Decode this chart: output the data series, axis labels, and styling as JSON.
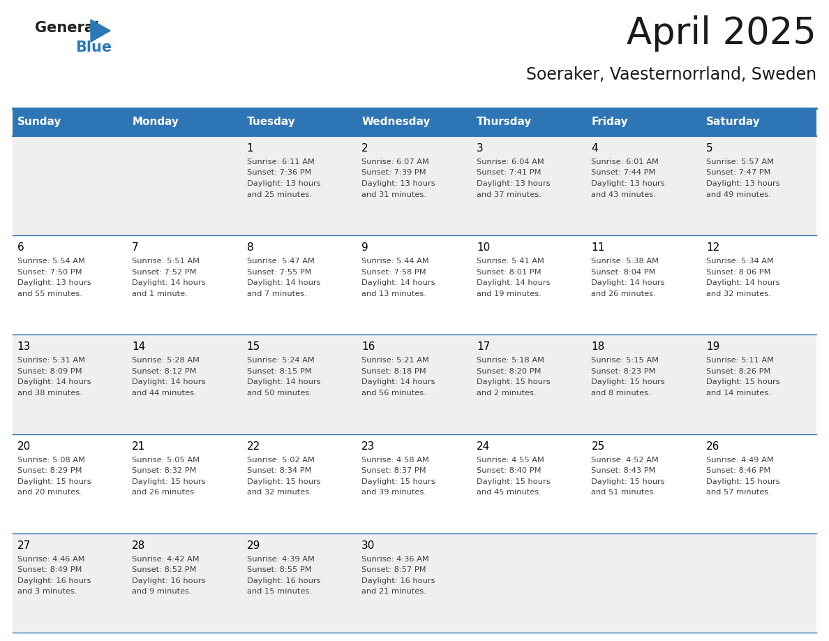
{
  "title": "April 2025",
  "subtitle": "Soeraker, Vaesternorrland, Sweden",
  "days_of_week": [
    "Sunday",
    "Monday",
    "Tuesday",
    "Wednesday",
    "Thursday",
    "Friday",
    "Saturday"
  ],
  "header_bg": "#2E75B6",
  "header_text_color": "#FFFFFF",
  "row_bg_even": "#EFEFEF",
  "row_bg_odd": "#FFFFFF",
  "cell_border_color": "#2E75B6",
  "day_number_color": "#000000",
  "content_text_color": "#404040",
  "title_color": "#1a1a1a",
  "subtitle_color": "#1a1a1a",
  "calendar_data": [
    [
      {
        "day": "",
        "sunrise": "",
        "sunset": "",
        "daylight": ""
      },
      {
        "day": "",
        "sunrise": "",
        "sunset": "",
        "daylight": ""
      },
      {
        "day": "1",
        "sunrise": "Sunrise: 6:11 AM",
        "sunset": "Sunset: 7:36 PM",
        "daylight": "Daylight: 13 hours and 25 minutes."
      },
      {
        "day": "2",
        "sunrise": "Sunrise: 6:07 AM",
        "sunset": "Sunset: 7:39 PM",
        "daylight": "Daylight: 13 hours and 31 minutes."
      },
      {
        "day": "3",
        "sunrise": "Sunrise: 6:04 AM",
        "sunset": "Sunset: 7:41 PM",
        "daylight": "Daylight: 13 hours and 37 minutes."
      },
      {
        "day": "4",
        "sunrise": "Sunrise: 6:01 AM",
        "sunset": "Sunset: 7:44 PM",
        "daylight": "Daylight: 13 hours and 43 minutes."
      },
      {
        "day": "5",
        "sunrise": "Sunrise: 5:57 AM",
        "sunset": "Sunset: 7:47 PM",
        "daylight": "Daylight: 13 hours and 49 minutes."
      }
    ],
    [
      {
        "day": "6",
        "sunrise": "Sunrise: 5:54 AM",
        "sunset": "Sunset: 7:50 PM",
        "daylight": "Daylight: 13 hours and 55 minutes."
      },
      {
        "day": "7",
        "sunrise": "Sunrise: 5:51 AM",
        "sunset": "Sunset: 7:52 PM",
        "daylight": "Daylight: 14 hours and 1 minute."
      },
      {
        "day": "8",
        "sunrise": "Sunrise: 5:47 AM",
        "sunset": "Sunset: 7:55 PM",
        "daylight": "Daylight: 14 hours and 7 minutes."
      },
      {
        "day": "9",
        "sunrise": "Sunrise: 5:44 AM",
        "sunset": "Sunset: 7:58 PM",
        "daylight": "Daylight: 14 hours and 13 minutes."
      },
      {
        "day": "10",
        "sunrise": "Sunrise: 5:41 AM",
        "sunset": "Sunset: 8:01 PM",
        "daylight": "Daylight: 14 hours and 19 minutes."
      },
      {
        "day": "11",
        "sunrise": "Sunrise: 5:38 AM",
        "sunset": "Sunset: 8:04 PM",
        "daylight": "Daylight: 14 hours and 26 minutes."
      },
      {
        "day": "12",
        "sunrise": "Sunrise: 5:34 AM",
        "sunset": "Sunset: 8:06 PM",
        "daylight": "Daylight: 14 hours and 32 minutes."
      }
    ],
    [
      {
        "day": "13",
        "sunrise": "Sunrise: 5:31 AM",
        "sunset": "Sunset: 8:09 PM",
        "daylight": "Daylight: 14 hours and 38 minutes."
      },
      {
        "day": "14",
        "sunrise": "Sunrise: 5:28 AM",
        "sunset": "Sunset: 8:12 PM",
        "daylight": "Daylight: 14 hours and 44 minutes."
      },
      {
        "day": "15",
        "sunrise": "Sunrise: 5:24 AM",
        "sunset": "Sunset: 8:15 PM",
        "daylight": "Daylight: 14 hours and 50 minutes."
      },
      {
        "day": "16",
        "sunrise": "Sunrise: 5:21 AM",
        "sunset": "Sunset: 8:18 PM",
        "daylight": "Daylight: 14 hours and 56 minutes."
      },
      {
        "day": "17",
        "sunrise": "Sunrise: 5:18 AM",
        "sunset": "Sunset: 8:20 PM",
        "daylight": "Daylight: 15 hours and 2 minutes."
      },
      {
        "day": "18",
        "sunrise": "Sunrise: 5:15 AM",
        "sunset": "Sunset: 8:23 PM",
        "daylight": "Daylight: 15 hours and 8 minutes."
      },
      {
        "day": "19",
        "sunrise": "Sunrise: 5:11 AM",
        "sunset": "Sunset: 8:26 PM",
        "daylight": "Daylight: 15 hours and 14 minutes."
      }
    ],
    [
      {
        "day": "20",
        "sunrise": "Sunrise: 5:08 AM",
        "sunset": "Sunset: 8:29 PM",
        "daylight": "Daylight: 15 hours and 20 minutes."
      },
      {
        "day": "21",
        "sunrise": "Sunrise: 5:05 AM",
        "sunset": "Sunset: 8:32 PM",
        "daylight": "Daylight: 15 hours and 26 minutes."
      },
      {
        "day": "22",
        "sunrise": "Sunrise: 5:02 AM",
        "sunset": "Sunset: 8:34 PM",
        "daylight": "Daylight: 15 hours and 32 minutes."
      },
      {
        "day": "23",
        "sunrise": "Sunrise: 4:58 AM",
        "sunset": "Sunset: 8:37 PM",
        "daylight": "Daylight: 15 hours and 39 minutes."
      },
      {
        "day": "24",
        "sunrise": "Sunrise: 4:55 AM",
        "sunset": "Sunset: 8:40 PM",
        "daylight": "Daylight: 15 hours and 45 minutes."
      },
      {
        "day": "25",
        "sunrise": "Sunrise: 4:52 AM",
        "sunset": "Sunset: 8:43 PM",
        "daylight": "Daylight: 15 hours and 51 minutes."
      },
      {
        "day": "26",
        "sunrise": "Sunrise: 4:49 AM",
        "sunset": "Sunset: 8:46 PM",
        "daylight": "Daylight: 15 hours and 57 minutes."
      }
    ],
    [
      {
        "day": "27",
        "sunrise": "Sunrise: 4:46 AM",
        "sunset": "Sunset: 8:49 PM",
        "daylight": "Daylight: 16 hours and 3 minutes."
      },
      {
        "day": "28",
        "sunrise": "Sunrise: 4:42 AM",
        "sunset": "Sunset: 8:52 PM",
        "daylight": "Daylight: 16 hours and 9 minutes."
      },
      {
        "day": "29",
        "sunrise": "Sunrise: 4:39 AM",
        "sunset": "Sunset: 8:55 PM",
        "daylight": "Daylight: 16 hours and 15 minutes."
      },
      {
        "day": "30",
        "sunrise": "Sunrise: 4:36 AM",
        "sunset": "Sunset: 8:57 PM",
        "daylight": "Daylight: 16 hours and 21 minutes."
      },
      {
        "day": "",
        "sunrise": "",
        "sunset": "",
        "daylight": ""
      },
      {
        "day": "",
        "sunrise": "",
        "sunset": "",
        "daylight": ""
      },
      {
        "day": "",
        "sunrise": "",
        "sunset": "",
        "daylight": ""
      }
    ]
  ]
}
